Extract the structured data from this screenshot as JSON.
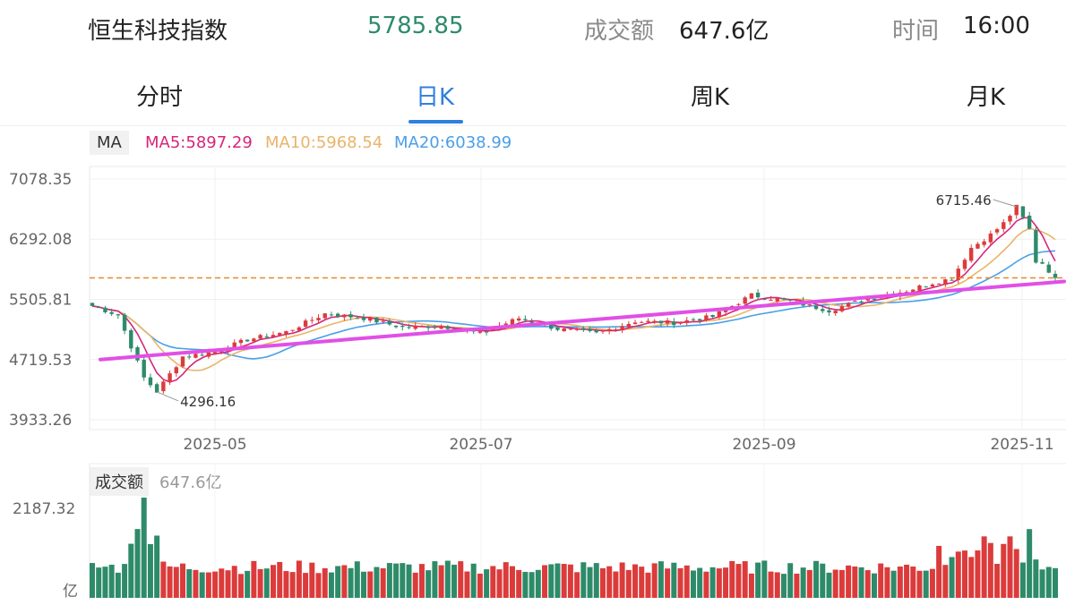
{
  "header": {
    "name": "恒生科技指数",
    "price": "5785.85",
    "volume_label": "成交额",
    "volume": "647.6亿",
    "time_label": "时间",
    "time": "16:00"
  },
  "tabs": [
    {
      "label": "分时",
      "active": false
    },
    {
      "label": "日K",
      "active": true
    },
    {
      "label": "周K",
      "active": false
    },
    {
      "label": "月K",
      "active": false
    }
  ],
  "ma_legend": {
    "label": "MA",
    "ma5": "MA5:5897.29",
    "ma10": "MA10:5968.54",
    "ma20": "MA20:6038.99"
  },
  "volume_panel": {
    "label": "成交额",
    "value": "647.6亿",
    "y_max_label": "2187.32",
    "unit_label": "亿"
  },
  "colors": {
    "up": "#dc3b3b",
    "down": "#2e8b6a",
    "ma5": "#d6267a",
    "ma10": "#e9b46a",
    "ma20": "#4a9fe8",
    "trendline": "#e14fe6",
    "last_price_line": "#e8882b",
    "accent": "#2f7fe0"
  },
  "chart_data": [
    {
      "type": "candlestick",
      "y_ticks": [
        "7078.35",
        "6292.08",
        "5505.81",
        "4719.53",
        "3933.26"
      ],
      "ylim": [
        3933.26,
        7078.35
      ],
      "x_ticks": [
        "2025-05",
        "2025-07",
        "2025-09",
        "2025-11"
      ],
      "annotations": [
        {
          "text": "4296.16",
          "kind": "low"
        },
        {
          "text": "6715.46",
          "kind": "high"
        }
      ],
      "last_price": 5785.85,
      "trendline": {
        "from": 4719.53,
        "to": 5740
      },
      "grid": true,
      "series": [
        {
          "name": "MA5",
          "value": 5897.29
        },
        {
          "name": "MA10",
          "value": 5968.54
        },
        {
          "name": "MA20",
          "value": 6038.99
        }
      ]
    },
    {
      "type": "bar",
      "ylim": [
        0,
        2187.32
      ],
      "y_ticks": [
        "2187.32"
      ],
      "last_value": 647.6
    }
  ]
}
